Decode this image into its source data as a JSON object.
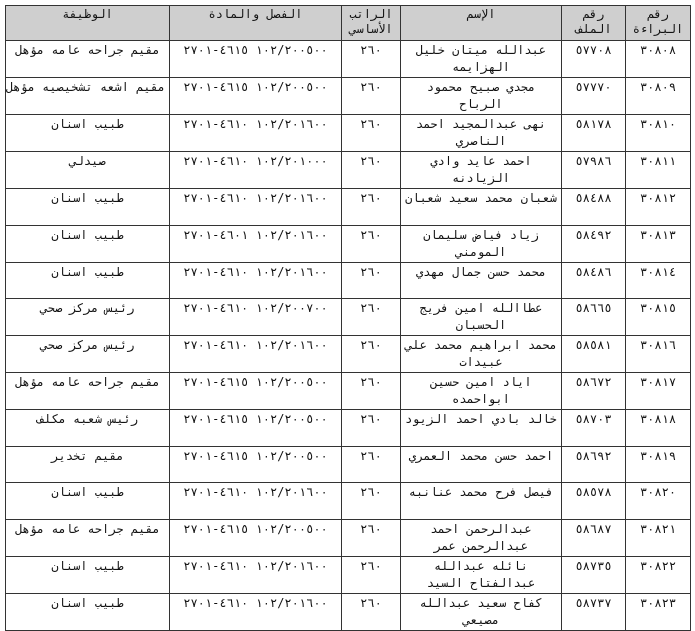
{
  "headers": {
    "bara": "رقم البراءة",
    "file": "رقم الملف",
    "name": "الإسم",
    "salary": "الراتب الأساسي",
    "fasl": "الفصل والمادة",
    "job": "الوظيفة"
  },
  "rows": [
    {
      "bara": "٣٠٨٠٨",
      "file": "٥٧٧٠٨",
      "name": "عبدالله ميتان خليل الهزايمه",
      "salary": "٢٦٠",
      "fasl": "١٠٢/٢٠٠٥٠٠ ٤٦١٥-٢٧٠١",
      "job": "مقيم جراحه عامه مؤهل"
    },
    {
      "bara": "٣٠٨٠٩",
      "file": "٥٧٧٧٠",
      "name": "مجدي صبيح محمود الرباح",
      "salary": "٢٦٠",
      "fasl": "١٠٢/٢٠٠٥٠٠ ٤٦١٥-٢٧٠١",
      "job": "مقيم اشعه تشخيصيه مؤهل"
    },
    {
      "bara": "٣٠٨١٠",
      "file": "٥٨١٧٨",
      "name": "نهى عبدالمجيد احمد الناصري",
      "salary": "٢٦٠",
      "fasl": "١٠٢/٢٠١٦٠٠ ٤٦١٠-٢٧٠١",
      "job": "طبيب اسنان"
    },
    {
      "bara": "٣٠٨١١",
      "file": "٥٧٩٨٦",
      "name": "احمد عايد وادي الزيادنه",
      "salary": "٢٦٠",
      "fasl": "١٠٢/٢٠١٠٠٠ ٤٦١٠-٢٧٠١",
      "job": "صيدلي"
    },
    {
      "bara": "٣٠٨١٢",
      "file": "٥٨٤٨٨",
      "name": "شعبان محمد سعيد شعبان",
      "salary": "٢٦٠",
      "fasl": "١٠٢/٢٠١٦٠٠ ٤٦١٠-٢٧٠١",
      "job": "طبيب اسنان"
    },
    {
      "bara": "٣٠٨١٣",
      "file": "٥٨٤٩٢",
      "name": "زياد فياض سليمان المومني",
      "salary": "٢٦٠",
      "fasl": "١٠٢/٢٠١٦٠٠ ٤٦٠١-٢٧٠١",
      "job": "طبيب اسنان"
    },
    {
      "bara": "٣٠٨١٤",
      "file": "٥٨٤٨٦",
      "name": "محمد حسن جمال مهدي",
      "salary": "٢٦٠",
      "fasl": "١٠٢/٢٠١٦٠٠ ٤٦١٠-٢٧٠١",
      "job": "طبيب اسنان"
    },
    {
      "bara": "٣٠٨١٥",
      "file": "٥٨٦٦٥",
      "name": "عطاالله امين فريج الحسبان",
      "salary": "٢٦٠",
      "fasl": "١٠٢/٢٠٠٧٠٠ ٤٦١٠-٢٧٠١",
      "job": "رئيس مركز صحي"
    },
    {
      "bara": "٣٠٨١٦",
      "file": "٥٨٥٨١",
      "name": "محمد ابراهيم محمد علي عبيدات",
      "salary": "٢٦٠",
      "fasl": "١٠٢/٢٠١٦٠٠ ٤٦١٠-٢٧٠١",
      "job": "رئيس مركز صحي"
    },
    {
      "bara": "٣٠٨١٧",
      "file": "٥٨٦٧٢",
      "name": "اياد امين حسين ابواحمده",
      "salary": "٢٦٠",
      "fasl": "١٠٢/٢٠٠٥٠٠ ٤٦١٥-٢٧٠١",
      "job": "مقيم جراحه عامه مؤهل"
    },
    {
      "bara": "٣٠٨١٨",
      "file": "٥٨٧٠٣",
      "name": "خالد بادي احمد الزيود",
      "salary": "٢٦٠",
      "fasl": "١٠٢/٢٠٠٥٠٠ ٤٦١٥-٢٧٠١",
      "job": "رئيس شعبه مكلف"
    },
    {
      "bara": "٣٠٨١٩",
      "file": "٥٨٦٩٢",
      "name": "احمد حسن محمد العمري",
      "salary": "٢٦٠",
      "fasl": "١٠٢/٢٠٠٥٠٠ ٤٦١٥-٢٧٠١",
      "job": "مقيم تخدير"
    },
    {
      "bara": "٣٠٨٢٠",
      "file": "٥٨٥٧٨",
      "name": "فيصل فرح محمد عنانبه",
      "salary": "٢٦٠",
      "fasl": "١٠٢/٢٠١٦٠٠ ٤٦١٠-٢٧٠١",
      "job": "طبيب اسنان"
    },
    {
      "bara": "٣٠٨٢١",
      "file": "٥٨٦٨٧",
      "name": "عبدالرحمن احمد عبدالرحمن عمر",
      "salary": "٢٦٠",
      "fasl": "١٠٢/٢٠٠٥٠٠ ٤٦١٥-٢٧٠١",
      "job": "مقيم جراحه عامه مؤهل"
    },
    {
      "bara": "٣٠٨٢٢",
      "file": "٥٨٧٣٥",
      "name": "نائله عبدالله عبدالفتاح السيد",
      "salary": "٢٦٠",
      "fasl": "١٠٢/٢٠١٦٠٠ ٤٦١٠-٢٧٠١",
      "job": "طبيب اسنان"
    },
    {
      "bara": "٣٠٨٢٣",
      "file": "٥٨٧٣٧",
      "name": "كفاح سعيد عبدالله مصيعي",
      "salary": "٢٦٠",
      "fasl": "١٠٢/٢٠١٦٠٠ ٤٦١٠-٢٧٠١",
      "job": "طبيب اسنان"
    }
  ]
}
